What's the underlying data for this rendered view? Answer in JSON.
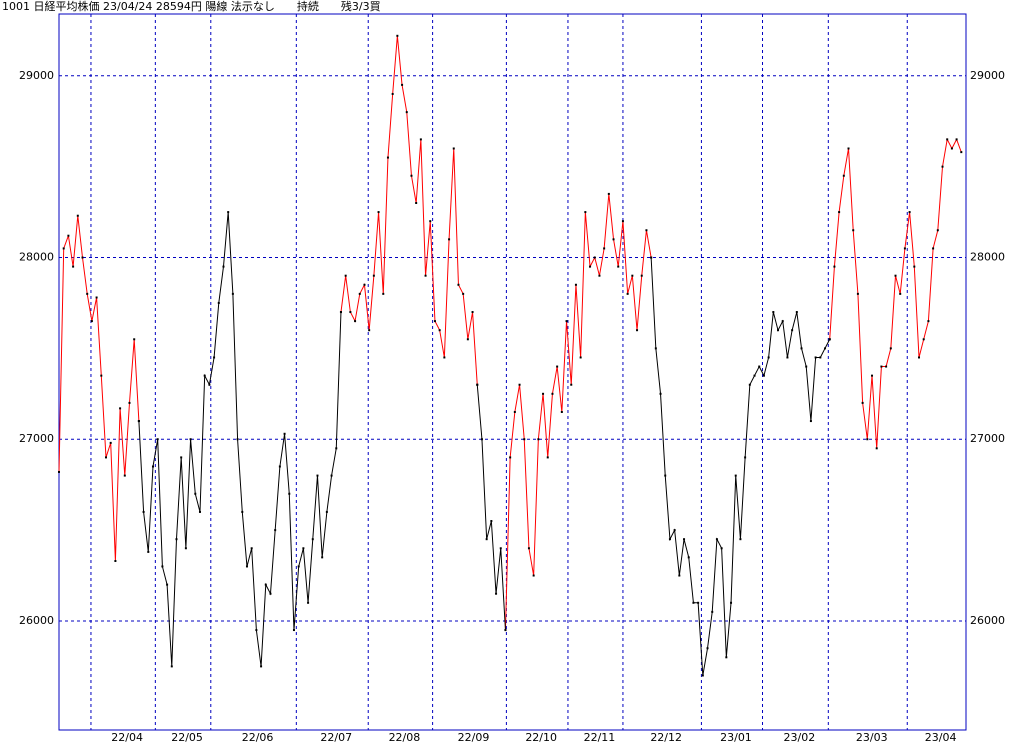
{
  "chart_data": {
    "type": "line",
    "title": "1001 日経平均株価 23/04/24 28594円 陽線 法示なし　　持続　　残3/3買",
    "ylim": [
      25400,
      29340
    ],
    "yticks": [
      26000,
      27000,
      28000,
      29000
    ],
    "xlim": [
      0,
      193
    ],
    "xticks": [
      {
        "value": 6.8,
        "label": "22/04"
      },
      {
        "value": 20.5,
        "label": "22/05"
      },
      {
        "value": 32.3,
        "label": "22/06"
      },
      {
        "value": 50.5,
        "label": "22/07"
      },
      {
        "value": 65.8,
        "label": "22/08"
      },
      {
        "value": 79.5,
        "label": "22/09"
      },
      {
        "value": 95.2,
        "label": "22/10"
      },
      {
        "value": 108.3,
        "label": "22/11"
      },
      {
        "value": 120,
        "label": "22/12"
      },
      {
        "value": 136.7,
        "label": "23/01"
      },
      {
        "value": 149.7,
        "label": "23/02"
      },
      {
        "value": 163.7,
        "label": "23/03"
      },
      {
        "value": 180.5,
        "label": "23/04"
      }
    ],
    "grid": true,
    "series": [
      {
        "color": "#ff0000",
        "values": [
          26820,
          28050,
          28120,
          27950,
          28230,
          28000,
          27800,
          27650,
          27780,
          27350,
          26900,
          26980,
          26330,
          27170,
          26800,
          27200,
          27550,
          27100,
          null,
          null,
          null,
          null,
          null,
          null,
          null,
          null,
          null,
          null,
          null,
          null,
          null,
          null,
          null,
          null,
          null,
          null,
          null,
          null,
          null,
          null,
          null,
          null,
          null,
          null,
          null,
          null,
          null,
          null,
          null,
          null,
          null,
          null,
          null,
          null,
          null,
          null,
          null,
          null,
          null,
          null,
          27700,
          27900,
          27700,
          27650,
          27800,
          27850,
          27600,
          27900,
          28250,
          27800,
          28550,
          28900,
          29220,
          28950,
          28800,
          28450,
          28300,
          28650,
          27900,
          28200,
          27650,
          27600,
          27450,
          28100,
          28600,
          27850,
          27800,
          27550,
          27700,
          27300,
          null,
          null,
          null,
          null,
          null,
          25950,
          26900,
          27150,
          27300,
          27000,
          26400,
          26250,
          27000,
          27250,
          26900,
          27250,
          27400,
          27150,
          27650,
          27300,
          27850,
          27450,
          28250,
          27950,
          28000,
          27900,
          28050,
          28350,
          28100,
          27950,
          28200,
          27800,
          27900,
          27600,
          27900,
          28150,
          28000,
          null,
          null,
          null,
          null,
          null,
          null,
          null,
          null,
          null,
          null,
          null,
          null,
          null,
          null,
          null,
          null,
          null,
          null,
          null,
          null,
          null,
          null,
          null,
          null,
          null,
          null,
          null,
          null,
          null,
          null,
          null,
          null,
          null,
          null,
          null,
          null,
          null,
          27550,
          27950,
          28250,
          28450,
          28600,
          28150,
          27800,
          27200,
          27000,
          27350,
          26950,
          27400,
          27400,
          27500,
          27900,
          27800,
          28050,
          28250,
          27950,
          27450,
          27550,
          27650,
          28050,
          28150,
          28500,
          28650,
          28600,
          28650,
          28580
        ]
      },
      {
        "color": "#000000",
        "values": [
          null,
          null,
          null,
          null,
          null,
          null,
          null,
          null,
          null,
          null,
          null,
          null,
          null,
          null,
          null,
          null,
          null,
          27100,
          26600,
          26380,
          26850,
          27000,
          26300,
          26200,
          25750,
          26450,
          26900,
          26400,
          27000,
          26700,
          26600,
          27350,
          27300,
          27450,
          27750,
          27950,
          28250,
          27800,
          27000,
          26600,
          26300,
          26400,
          25950,
          25750,
          26200,
          26150,
          26500,
          26850,
          27030,
          26700,
          25950,
          26300,
          26400,
          26100,
          26450,
          26800,
          26350,
          26600,
          26800,
          26950,
          27700,
          null,
          null,
          null,
          null,
          null,
          null,
          null,
          null,
          null,
          null,
          null,
          null,
          null,
          null,
          null,
          null,
          null,
          null,
          null,
          null,
          null,
          null,
          null,
          null,
          null,
          null,
          null,
          null,
          27300,
          27000,
          26450,
          26550,
          26150,
          26400,
          25950,
          null,
          null,
          null,
          null,
          null,
          null,
          null,
          null,
          null,
          null,
          null,
          null,
          null,
          null,
          null,
          null,
          null,
          null,
          null,
          null,
          null,
          null,
          null,
          null,
          null,
          null,
          null,
          null,
          null,
          null,
          28000,
          27500,
          27250,
          26800,
          26450,
          26500,
          26250,
          26450,
          26350,
          26100,
          26100,
          25700,
          25850,
          26050,
          26450,
          26400,
          25800,
          26100,
          26800,
          26450,
          26900,
          27300,
          27350,
          27400,
          27350,
          27450,
          27700,
          27600,
          27650,
          27450,
          27600,
          27700,
          27500,
          27400,
          27100,
          27450,
          27450,
          27500,
          27550,
          null,
          null,
          null,
          null,
          null,
          null,
          null,
          null,
          null,
          null,
          null,
          null,
          null,
          null,
          null,
          null,
          null,
          null,
          null,
          null,
          null,
          null,
          null,
          null,
          null,
          null,
          null,
          null
        ]
      }
    ]
  }
}
